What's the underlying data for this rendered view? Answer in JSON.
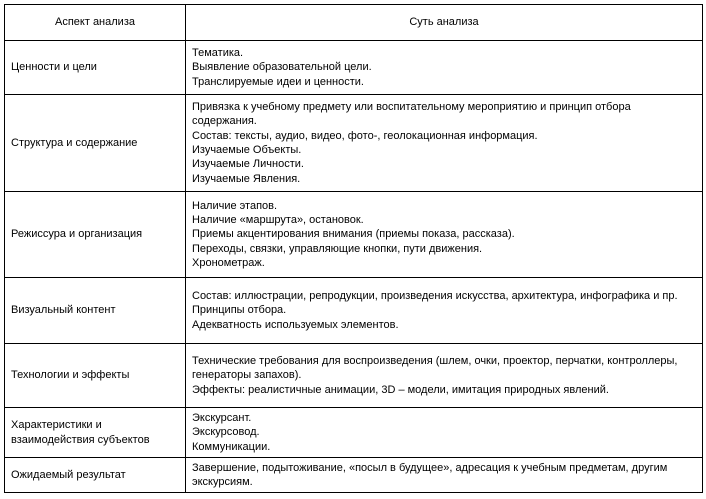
{
  "header": {
    "aspect": "Аспект анализа",
    "essence": "Суть анализа"
  },
  "rows": [
    {
      "aspect": "Ценности и цели",
      "items": [
        "Тематика.",
        "Выявление образовательной цели.",
        "Транслируемые идеи и ценности."
      ]
    },
    {
      "aspect": "Структура и содержание",
      "items": [
        "Привязка к учебному предмету или воспитательному мероприятию и принцип отбора содержания.",
        "Состав: тексты, аудио, видео, фото-, геолокационная информация.",
        "Изучаемые Объекты.",
        "Изучаемые Личности.",
        "Изучаемые Явления."
      ]
    },
    {
      "aspect": "Режиссура и организация",
      "items": [
        "Наличие этапов.",
        "Наличие «маршрута», остановок.",
        "Приемы акцентирования внимания (приемы показа, рассказа).",
        "Переходы, связки, управляющие кнопки, пути движения.",
        "Хронометраж."
      ]
    },
    {
      "aspect": "Визуальный контент",
      "items": [
        "Состав: иллюстрации, репродукции, произведения искусства, архитектура, инфографика и пр.",
        "Принципы отбора.",
        "Адекватность используемых элементов."
      ]
    },
    {
      "aspect": "Технологии и эффекты",
      "items": [
        "Технические требования для воспроизведения (шлем, очки, проектор, перчатки, контроллеры, генераторы запахов).",
        "Эффекты: реалистичные анимации, 3D – модели, имитация природных явлений."
      ]
    },
    {
      "aspect": "Характеристики и взаимодействия субъектов",
      "items": [
        "Экскурсант.",
        "Экскурсовод.",
        "Коммуникации."
      ]
    },
    {
      "aspect": "Ожидаемый результат",
      "items": [
        "Завершение, подытоживание, «посыл в будущее», адресация к учебным предметам, другим экскурсиям."
      ]
    }
  ]
}
